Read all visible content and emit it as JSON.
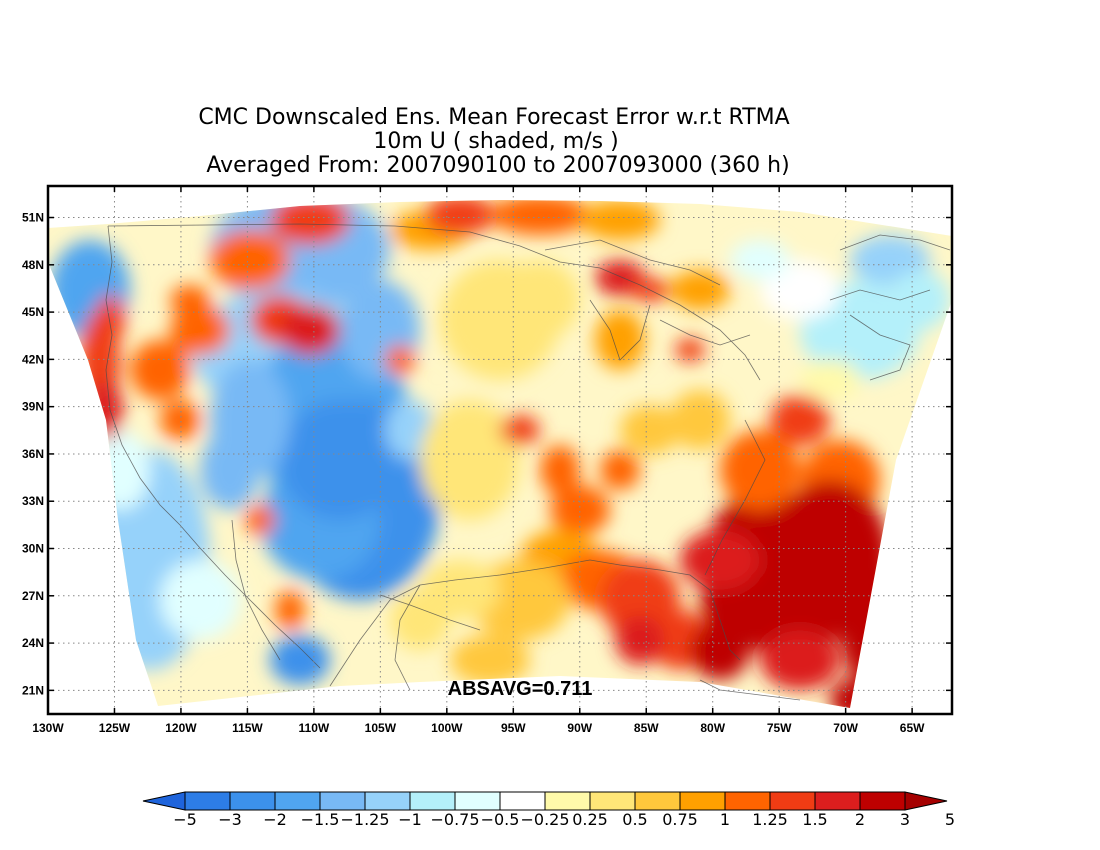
{
  "title_lines": [
    "CMC Downscaled Ens. Mean Forecast Error w.r.t RTMA",
    "10m U ( shaded, m/s )",
    "Averaged From: 2007090100 to 2007093000 (360 h)"
  ],
  "map": {
    "lon_range": [
      -130,
      -62
    ],
    "lat_range": [
      19.5,
      53
    ],
    "lat_ticks": [
      {
        "value": 51,
        "label": "51N"
      },
      {
        "value": 48,
        "label": "48N"
      },
      {
        "value": 45,
        "label": "45N"
      },
      {
        "value": 42,
        "label": "42N"
      },
      {
        "value": 39,
        "label": "39N"
      },
      {
        "value": 36,
        "label": "36N"
      },
      {
        "value": 33,
        "label": "33N"
      },
      {
        "value": 30,
        "label": "30N"
      },
      {
        "value": 27,
        "label": "27N"
      },
      {
        "value": 24,
        "label": "24N"
      },
      {
        "value": 21,
        "label": "21N"
      }
    ],
    "lon_ticks": [
      {
        "value": -130,
        "label": "130W"
      },
      {
        "value": -125,
        "label": "125W"
      },
      {
        "value": -120,
        "label": "120W"
      },
      {
        "value": -115,
        "label": "115W"
      },
      {
        "value": -110,
        "label": "110W"
      },
      {
        "value": -105,
        "label": "105W"
      },
      {
        "value": -100,
        "label": "100W"
      },
      {
        "value": -95,
        "label": "95W"
      },
      {
        "value": -90,
        "label": "90W"
      },
      {
        "value": -85,
        "label": "85W"
      },
      {
        "value": -80,
        "label": "80W"
      },
      {
        "value": -75,
        "label": "75W"
      },
      {
        "value": -70,
        "label": "70W"
      },
      {
        "value": -65,
        "label": "65W"
      }
    ],
    "gridlines": "dotted",
    "annotation": "ABSAVG=0.711"
  },
  "colorbar": {
    "colors": [
      "#1e64dc",
      "#2d7de6",
      "#3c91eb",
      "#50a5f0",
      "#78b9f5",
      "#96d2fa",
      "#b4f0fa",
      "#e1ffff",
      "#ffffff",
      "#fffaaa",
      "#ffe678",
      "#ffc83c",
      "#ffa000",
      "#ff6400",
      "#f03c14",
      "#dc1e1e",
      "#be0000",
      "#a50000"
    ],
    "labels": [
      "-5",
      "-3",
      "-2",
      "-1.5",
      "-1.25",
      "-1",
      "-0.75",
      "-0.5",
      "-0.25",
      "0.25",
      "0.5",
      "0.75",
      "1",
      "1.25",
      "1.5",
      "2",
      "3",
      "5"
    ]
  }
}
